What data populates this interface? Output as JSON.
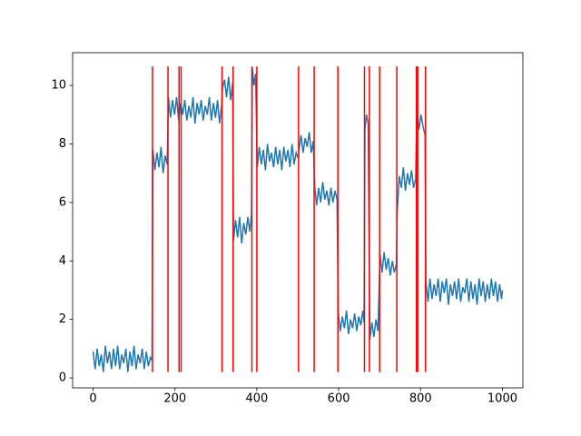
{
  "chart_data": {
    "type": "line",
    "x": [
      0,
      5,
      10,
      15,
      20,
      25,
      30,
      35,
      40,
      45,
      50,
      55,
      60,
      65,
      70,
      75,
      80,
      85,
      90,
      95,
      100,
      105,
      110,
      115,
      120,
      125,
      130,
      135,
      140,
      144,
      146,
      151,
      156,
      161,
      166,
      171,
      176,
      181,
      184,
      189,
      194,
      199,
      204,
      209,
      214,
      219,
      224,
      229,
      234,
      239,
      244,
      249,
      254,
      259,
      264,
      269,
      274,
      279,
      284,
      289,
      294,
      299,
      304,
      309,
      314,
      316,
      321,
      326,
      331,
      336,
      341,
      343,
      348,
      353,
      358,
      363,
      368,
      373,
      378,
      383,
      387,
      389,
      393,
      397,
      401,
      406,
      411,
      416,
      421,
      426,
      431,
      436,
      441,
      446,
      451,
      456,
      461,
      466,
      471,
      476,
      481,
      486,
      491,
      496,
      501,
      503,
      508,
      513,
      518,
      523,
      528,
      533,
      538,
      541,
      546,
      551,
      556,
      561,
      566,
      571,
      576,
      581,
      586,
      591,
      596,
      599,
      604,
      609,
      614,
      619,
      624,
      629,
      634,
      639,
      644,
      649,
      654,
      659,
      662,
      664,
      668,
      672,
      676,
      681,
      686,
      691,
      696,
      701,
      706,
      711,
      716,
      721,
      726,
      731,
      736,
      741,
      743,
      748,
      753,
      758,
      763,
      768,
      773,
      778,
      783,
      788,
      791,
      796,
      801,
      806,
      811,
      813,
      818,
      823,
      828,
      833,
      838,
      843,
      848,
      853,
      858,
      863,
      868,
      873,
      878,
      883,
      888,
      893,
      898,
      903,
      908,
      913,
      918,
      923,
      928,
      933,
      938,
      943,
      948,
      953,
      958,
      963,
      968,
      973,
      978,
      983,
      988,
      993,
      998,
      1000
    ],
    "series": [
      {
        "color": "#1f77b4",
        "values": [
          0.9,
          0.3,
          1.0,
          0.4,
          0.8,
          0.2,
          1.1,
          0.5,
          0.9,
          0.3,
          1.0,
          0.4,
          1.1,
          0.3,
          0.8,
          0.5,
          1.0,
          0.2,
          0.9,
          0.4,
          1.1,
          0.3,
          0.8,
          0.5,
          1.0,
          0.3,
          0.9,
          0.4,
          0.7,
          0.6,
          7.8,
          7.1,
          7.7,
          7.2,
          7.9,
          7.0,
          7.6,
          7.3,
          9.6,
          8.9,
          9.5,
          9.0,
          9.6,
          8.8,
          9.4,
          9.0,
          9.5,
          8.8,
          9.3,
          8.9,
          9.6,
          8.7,
          9.4,
          9.0,
          9.5,
          8.8,
          9.3,
          9.0,
          9.6,
          8.8,
          9.4,
          8.9,
          9.5,
          8.7,
          9.3,
          9.9,
          10.2,
          9.6,
          10.3,
          9.5,
          10.1,
          4.7,
          5.4,
          4.8,
          5.5,
          4.6,
          5.3,
          4.9,
          5.5,
          5.0,
          5.6,
          10.6,
          10.0,
          10.4,
          7.2,
          7.9,
          7.3,
          7.8,
          7.1,
          8.0,
          7.4,
          7.7,
          7.2,
          7.9,
          7.3,
          7.8,
          7.1,
          7.9,
          7.4,
          7.8,
          7.2,
          8.0,
          7.3,
          7.7,
          7.5,
          7.8,
          8.3,
          7.7,
          8.2,
          7.9,
          8.4,
          7.7,
          8.1,
          6.6,
          5.9,
          6.5,
          6.0,
          6.7,
          6.1,
          6.4,
          5.9,
          6.5,
          6.0,
          6.4,
          6.1,
          2.2,
          1.6,
          2.1,
          1.7,
          2.3,
          1.5,
          2.0,
          1.7,
          2.2,
          1.6,
          2.1,
          1.8,
          2.3,
          1.9,
          8.5,
          9.0,
          8.7,
          1.3,
          1.9,
          1.4,
          2.0,
          1.6,
          4.2,
          3.6,
          4.3,
          3.7,
          4.1,
          3.5,
          4.0,
          3.6,
          3.9,
          5.7,
          6.9,
          6.5,
          7.2,
          6.4,
          7.0,
          6.6,
          7.1,
          6.5,
          6.8,
          9.1,
          8.5,
          9.0,
          8.6,
          8.3,
          3.3,
          2.6,
          3.4,
          2.7,
          3.2,
          2.8,
          3.4,
          2.6,
          3.3,
          2.9,
          3.4,
          2.5,
          3.2,
          2.8,
          3.3,
          2.7,
          3.4,
          2.6,
          3.1,
          2.9,
          3.4,
          2.6,
          3.3,
          2.7,
          3.2,
          2.5,
          3.4,
          2.8,
          3.3,
          2.6,
          3.2,
          2.7,
          3.4,
          2.8,
          3.3,
          2.6,
          3.2,
          2.7,
          3.0
        ]
      }
    ],
    "vlines": [
      145,
      183,
      210,
      215,
      315,
      342,
      388,
      400,
      502,
      540,
      598,
      663,
      675,
      700,
      742,
      790,
      793,
      812
    ],
    "vline_ymin": 0.2,
    "vline_ymax": 10.65,
    "vline_color": "#ff0000",
    "xlim": [
      -50,
      1050
    ],
    "xticks": [
      0,
      200,
      400,
      600,
      800,
      1000
    ],
    "ylim": [
      -0.34,
      11.12
    ],
    "yticks": [
      0,
      2,
      4,
      6,
      8,
      10
    ]
  }
}
